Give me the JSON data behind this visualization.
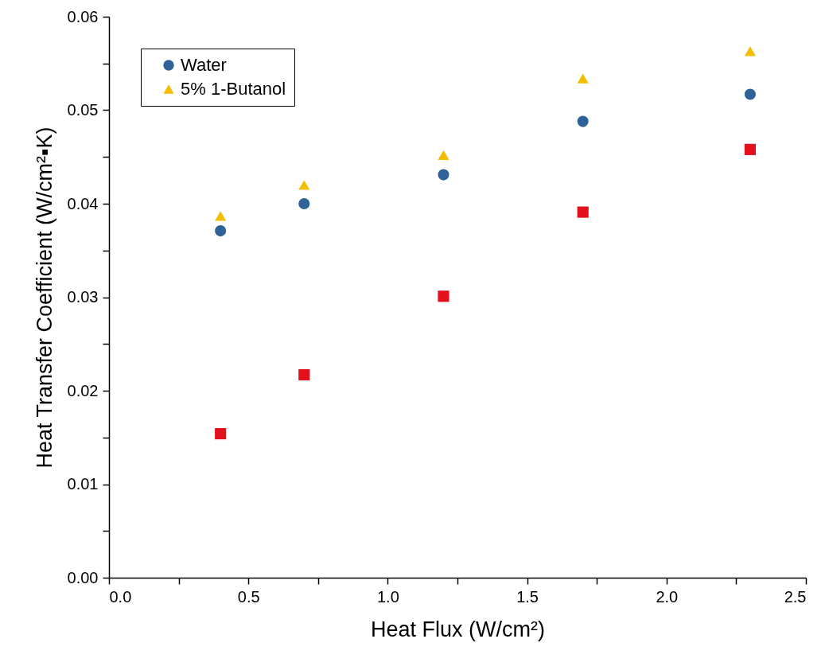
{
  "chart_data": {
    "type": "scatter",
    "xlabel": "Heat Flux (W/cm²)",
    "ylabel": "Heat Transfer Coefficient (W/cm²▪K)",
    "x": [
      0.4,
      0.7,
      1.2,
      1.7,
      2.3
    ],
    "series": [
      {
        "color": "#e3111b",
        "marker": "square",
        "values": [
          0.0154,
          0.0217,
          0.0301,
          0.0391,
          0.0458
        ]
      },
      {
        "name": "Water",
        "color": "#2f6397",
        "marker": "circle",
        "values": [
          0.0371,
          0.04,
          0.0431,
          0.0488,
          0.0517
        ]
      },
      {
        "name": "5% 1-Butanol",
        "color": "#f5bd00",
        "marker": "triangle",
        "values": [
          0.0387,
          0.042,
          0.0452,
          0.0534,
          0.0563
        ]
      }
    ],
    "xlim": [
      0,
      2.5
    ],
    "ylim": [
      0,
      0.06
    ],
    "xticks": [
      {
        "value": 0,
        "label": "0.0"
      },
      {
        "value": 0.25,
        "label": null
      },
      {
        "value": 0.5,
        "label": "0.5"
      },
      {
        "value": 0.75,
        "label": null
      },
      {
        "value": 1,
        "label": "1.0"
      },
      {
        "value": 1.25,
        "label": null
      },
      {
        "value": 1.5,
        "label": "1.5"
      },
      {
        "value": 1.75,
        "label": null
      },
      {
        "value": 2,
        "label": "2.0"
      },
      {
        "value": 2.25,
        "label": null
      },
      {
        "value": 2.5,
        "label": "2.5"
      }
    ],
    "yticks": [
      {
        "value": 0,
        "label": "0.00"
      },
      {
        "value": 0.005,
        "label": null
      },
      {
        "value": 0.01,
        "label": "0.01"
      },
      {
        "value": 0.015,
        "label": null
      },
      {
        "value": 0.02,
        "label": "0.02"
      },
      {
        "value": 0.025,
        "label": null
      },
      {
        "value": 0.03,
        "label": "0.03"
      },
      {
        "value": 0.035,
        "label": null
      },
      {
        "value": 0.04,
        "label": "0.04"
      },
      {
        "value": 0.045,
        "label": null
      },
      {
        "value": 0.05,
        "label": "0.05"
      },
      {
        "value": 0.055,
        "label": null
      },
      {
        "value": 0.06,
        "label": "0.06"
      }
    ],
    "grid": false,
    "legend": "top left"
  }
}
